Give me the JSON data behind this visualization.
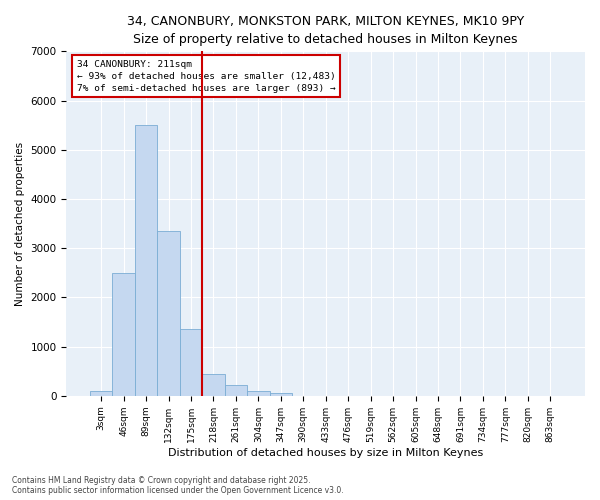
{
  "title_line1": "34, CANONBURY, MONKSTON PARK, MILTON KEYNES, MK10 9PY",
  "title_line2": "Size of property relative to detached houses in Milton Keynes",
  "xlabel": "Distribution of detached houses by size in Milton Keynes",
  "ylabel": "Number of detached properties",
  "categories": [
    "3sqm",
    "46sqm",
    "89sqm",
    "132sqm",
    "175sqm",
    "218sqm",
    "261sqm",
    "304sqm",
    "347sqm",
    "390sqm",
    "433sqm",
    "476sqm",
    "519sqm",
    "562sqm",
    "605sqm",
    "648sqm",
    "691sqm",
    "734sqm",
    "777sqm",
    "820sqm",
    "863sqm"
  ],
  "values": [
    100,
    2500,
    5500,
    3350,
    1350,
    450,
    220,
    100,
    60,
    0,
    0,
    0,
    0,
    0,
    0,
    0,
    0,
    0,
    0,
    0,
    0
  ],
  "bar_color": "#c5d8f0",
  "bar_edge_color": "#7aadd4",
  "vline_color": "#cc0000",
  "vline_x_index": 5,
  "annotation_title": "34 CANONBURY: 211sqm",
  "annotation_line1": "← 93% of detached houses are smaller (12,483)",
  "annotation_line2": "7% of semi-detached houses are larger (893) →",
  "ylim": [
    0,
    7000
  ],
  "yticks": [
    0,
    1000,
    2000,
    3000,
    4000,
    5000,
    6000,
    7000
  ],
  "background_color": "#e8f0f8",
  "grid_color": "#ffffff",
  "footer_line1": "Contains HM Land Registry data © Crown copyright and database right 2025.",
  "footer_line2": "Contains public sector information licensed under the Open Government Licence v3.0.",
  "title1_fontsize": 9.5,
  "title2_fontsize": 8.5
}
